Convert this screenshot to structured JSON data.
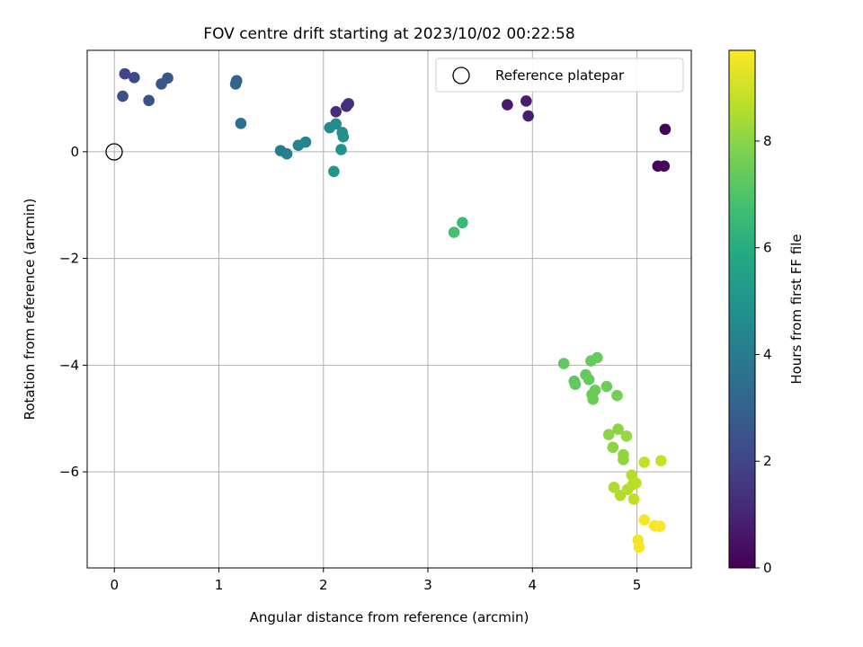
{
  "chart_data": {
    "type": "scatter",
    "title": "FOV centre drift starting at 2023/10/02 00:22:58",
    "xlabel": "Angular distance from reference (arcmin)",
    "ylabel": "Rotation from reference (arcmin)",
    "xlim": [
      -0.26,
      5.52
    ],
    "ylim": [
      -7.8,
      1.9
    ],
    "x_ticks": [
      0,
      1,
      2,
      3,
      4,
      5
    ],
    "y_ticks": [
      0,
      -2,
      -4,
      -6
    ],
    "grid": true,
    "legend": {
      "placement": "top-right",
      "entries": [
        "Reference platepar"
      ]
    },
    "reference_point": {
      "x": 0,
      "y": 0,
      "label": "Reference platepar"
    },
    "colorbar": {
      "label": "Hours from first FF file",
      "range": [
        0,
        9.7
      ],
      "ticks": [
        0,
        2,
        4,
        6,
        8
      ],
      "colormap": "viridis"
    },
    "points": [
      {
        "x": 5.27,
        "y": 0.42,
        "h": 0.1
      },
      {
        "x": 5.2,
        "y": -0.27,
        "h": 0.15
      },
      {
        "x": 5.26,
        "y": -0.27,
        "h": 0.2
      },
      {
        "x": 3.76,
        "y": 0.88,
        "h": 0.7
      },
      {
        "x": 3.94,
        "y": 0.95,
        "h": 0.75
      },
      {
        "x": 3.96,
        "y": 0.67,
        "h": 0.8
      },
      {
        "x": 2.12,
        "y": 0.75,
        "h": 1.2
      },
      {
        "x": 2.22,
        "y": 0.85,
        "h": 1.25
      },
      {
        "x": 2.24,
        "y": 0.9,
        "h": 1.3
      },
      {
        "x": 0.1,
        "y": 1.46,
        "h": 2.0
      },
      {
        "x": 0.19,
        "y": 1.39,
        "h": 2.1
      },
      {
        "x": 0.08,
        "y": 1.04,
        "h": 2.3
      },
      {
        "x": 0.33,
        "y": 0.96,
        "h": 2.4
      },
      {
        "x": 0.45,
        "y": 1.27,
        "h": 2.5
      },
      {
        "x": 0.51,
        "y": 1.38,
        "h": 2.6
      },
      {
        "x": 1.17,
        "y": 1.33,
        "h": 3.0
      },
      {
        "x": 1.16,
        "y": 1.27,
        "h": 3.1
      },
      {
        "x": 1.21,
        "y": 0.53,
        "h": 3.5
      },
      {
        "x": 1.59,
        "y": 0.02,
        "h": 4.0
      },
      {
        "x": 1.65,
        "y": -0.04,
        "h": 4.1
      },
      {
        "x": 1.76,
        "y": 0.12,
        "h": 4.3
      },
      {
        "x": 1.83,
        "y": 0.18,
        "h": 4.4
      },
      {
        "x": 2.06,
        "y": 0.45,
        "h": 4.6
      },
      {
        "x": 2.12,
        "y": 0.52,
        "h": 4.7
      },
      {
        "x": 2.18,
        "y": 0.36,
        "h": 4.8
      },
      {
        "x": 2.19,
        "y": 0.28,
        "h": 4.85
      },
      {
        "x": 2.17,
        "y": 0.04,
        "h": 4.9
      },
      {
        "x": 2.1,
        "y": -0.37,
        "h": 5.0
      },
      {
        "x": 3.33,
        "y": -1.33,
        "h": 6.5
      },
      {
        "x": 3.25,
        "y": -1.51,
        "h": 6.8
      },
      {
        "x": 4.3,
        "y": -3.97,
        "h": 7.3
      },
      {
        "x": 4.4,
        "y": -4.3,
        "h": 7.3
      },
      {
        "x": 4.41,
        "y": -4.36,
        "h": 7.35
      },
      {
        "x": 4.51,
        "y": -4.18,
        "h": 7.35
      },
      {
        "x": 4.54,
        "y": -4.27,
        "h": 7.4
      },
      {
        "x": 4.56,
        "y": -3.92,
        "h": 7.4
      },
      {
        "x": 4.62,
        "y": -3.86,
        "h": 7.45
      },
      {
        "x": 4.57,
        "y": -4.55,
        "h": 7.45
      },
      {
        "x": 4.58,
        "y": -4.64,
        "h": 7.5
      },
      {
        "x": 4.6,
        "y": -4.47,
        "h": 7.5
      },
      {
        "x": 4.71,
        "y": -4.4,
        "h": 7.55
      },
      {
        "x": 4.81,
        "y": -4.57,
        "h": 7.6
      },
      {
        "x": 4.73,
        "y": -5.3,
        "h": 8.0
      },
      {
        "x": 4.77,
        "y": -5.54,
        "h": 8.0
      },
      {
        "x": 4.82,
        "y": -5.2,
        "h": 8.0
      },
      {
        "x": 4.87,
        "y": -5.68,
        "h": 8.1
      },
      {
        "x": 4.87,
        "y": -5.77,
        "h": 8.1
      },
      {
        "x": 4.9,
        "y": -5.33,
        "h": 8.2
      },
      {
        "x": 4.78,
        "y": -6.29,
        "h": 8.5
      },
      {
        "x": 4.84,
        "y": -6.44,
        "h": 8.55
      },
      {
        "x": 4.91,
        "y": -6.33,
        "h": 8.6
      },
      {
        "x": 4.95,
        "y": -6.06,
        "h": 8.6
      },
      {
        "x": 4.96,
        "y": -6.24,
        "h": 8.65
      },
      {
        "x": 4.99,
        "y": -6.21,
        "h": 8.7
      },
      {
        "x": 4.97,
        "y": -6.51,
        "h": 8.75
      },
      {
        "x": 5.07,
        "y": -5.82,
        "h": 8.8
      },
      {
        "x": 5.23,
        "y": -5.79,
        "h": 8.9
      },
      {
        "x": 5.01,
        "y": -7.28,
        "h": 9.5
      },
      {
        "x": 5.02,
        "y": -7.41,
        "h": 9.55
      },
      {
        "x": 5.07,
        "y": -6.9,
        "h": 9.6
      },
      {
        "x": 5.17,
        "y": -7.01,
        "h": 9.6
      },
      {
        "x": 5.22,
        "y": -7.02,
        "h": 9.65
      }
    ]
  }
}
